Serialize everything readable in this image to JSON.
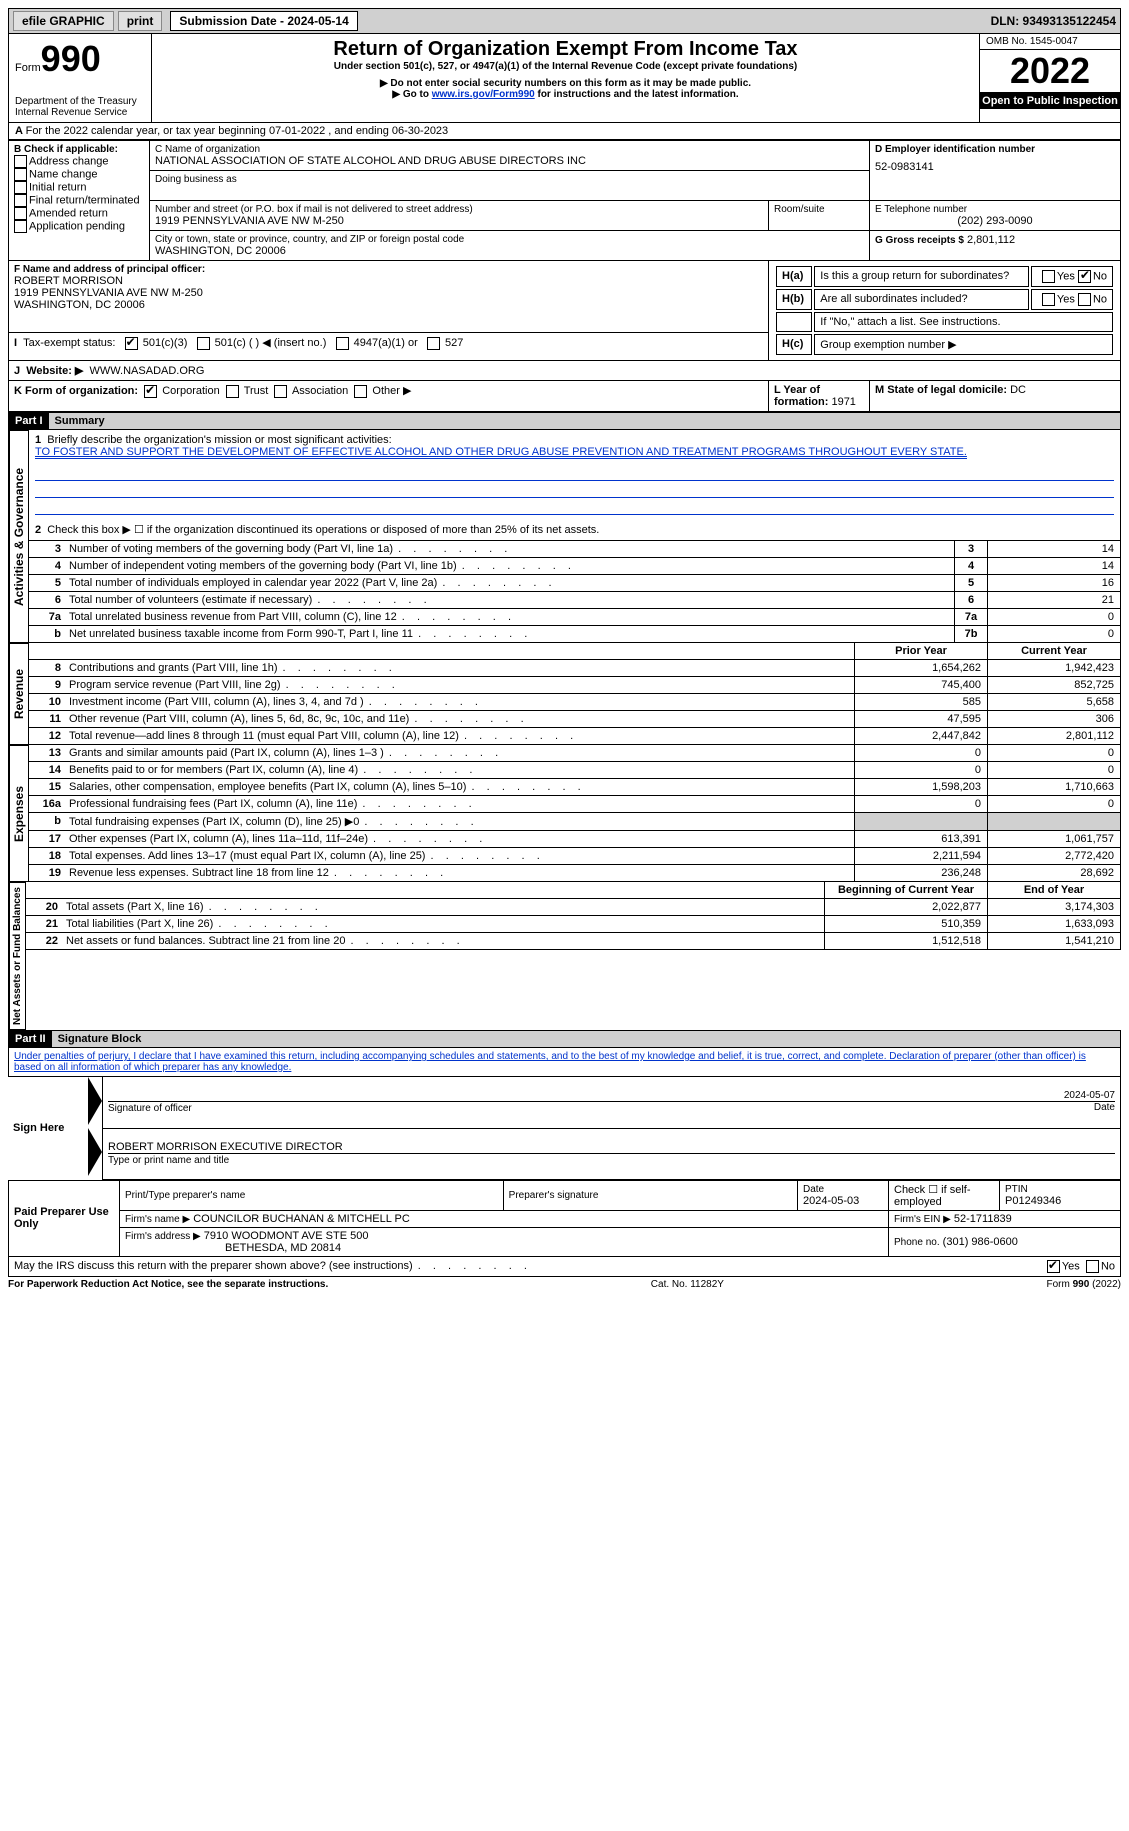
{
  "topbar": {
    "efile": "efile GRAPHIC",
    "print": "print",
    "subdate_label": "Submission Date - 2024-05-14",
    "dln_label": "DLN: 93493135122454"
  },
  "header": {
    "form_label": "Form",
    "form_num": "990",
    "dept": "Department of the Treasury",
    "irs": "Internal Revenue Service",
    "title": "Return of Organization Exempt From Income Tax",
    "subtitle": "Under section 501(c), 527, or 4947(a)(1) of the Internal Revenue Code (except private foundations)",
    "note1": "▶ Do not enter social security numbers on this form as it may be made public.",
    "note2_pre": "▶ Go to ",
    "note2_link": "www.irs.gov/Form990",
    "note2_post": " for instructions and the latest information.",
    "omb": "OMB No. 1545-0047",
    "year": "2022",
    "inspection": "Open to Public Inspection"
  },
  "periodA": "For the 2022 calendar year, or tax year beginning 07-01-2022    , and ending 06-30-2023",
  "sectionB": {
    "label": "B Check if applicable:",
    "opts": [
      "Address change",
      "Name change",
      "Initial return",
      "Final return/terminated",
      "Amended return",
      "Application pending"
    ]
  },
  "sectionC": {
    "name_label": "C Name of organization",
    "name": "NATIONAL ASSOCIATION OF STATE ALCOHOL AND DRUG ABUSE DIRECTORS INC",
    "dba_label": "Doing business as",
    "addr_label": "Number and street (or P.O. box if mail is not delivered to street address)",
    "room_label": "Room/suite",
    "addr": "1919 PENNSYLVANIA AVE NW M-250",
    "city_label": "City or town, state or province, country, and ZIP or foreign postal code",
    "city": "WASHINGTON, DC  20006"
  },
  "sectionD": {
    "label": "D Employer identification number",
    "val": "52-0983141"
  },
  "sectionE": {
    "label": "E Telephone number",
    "val": "(202) 293-0090"
  },
  "sectionG": {
    "label": "G Gross receipts $",
    "val": "2,801,112"
  },
  "sectionF": {
    "label": "F Name and address of principal officer:",
    "name": "ROBERT MORRISON",
    "addr": "1919 PENNSYLVANIA AVE NW M-250",
    "city": "WASHINGTON, DC  20006"
  },
  "sectionH": {
    "ha": "Is this a group return for subordinates?",
    "hb": "Are all subordinates included?",
    "hnote": "If \"No,\" attach a list. See instructions.",
    "hc": "Group exemption number ▶",
    "yes": "Yes",
    "no": "No"
  },
  "sectionI": {
    "label": "Tax-exempt status:",
    "o1": "501(c)(3)",
    "o2": "501(c) (   ) ◀ (insert no.)",
    "o3": "4947(a)(1) or",
    "o4": "527"
  },
  "sectionJ": {
    "label": "Website: ▶",
    "val": "WWW.NASADAD.ORG"
  },
  "sectionK": {
    "label": "K Form of organization:",
    "o1": "Corporation",
    "o2": "Trust",
    "o3": "Association",
    "o4": "Other ▶"
  },
  "sectionL": {
    "label": "L Year of formation:",
    "val": "1971"
  },
  "sectionM": {
    "label": "M State of legal domicile:",
    "val": "DC"
  },
  "part1": {
    "label": "Part I",
    "title": "Summary",
    "side_ag": "Activities & Governance",
    "side_rev": "Revenue",
    "side_exp": "Expenses",
    "side_net": "Net Assets or Fund Balances",
    "q1": "Briefly describe the organization's mission or most significant activities:",
    "mission": "TO FOSTER AND SUPPORT THE DEVELOPMENT OF EFFECTIVE ALCOHOL AND OTHER DRUG ABUSE PREVENTION AND TREATMENT PROGRAMS THROUGHOUT EVERY STATE.",
    "q2": "Check this box ▶ ☐  if the organization discontinued its operations or disposed of more than 25% of its net assets.",
    "rows_ag": [
      {
        "n": "3",
        "t": "Number of voting members of the governing body (Part VI, line 1a)",
        "b": "3",
        "v": "14"
      },
      {
        "n": "4",
        "t": "Number of independent voting members of the governing body (Part VI, line 1b)",
        "b": "4",
        "v": "14"
      },
      {
        "n": "5",
        "t": "Total number of individuals employed in calendar year 2022 (Part V, line 2a)",
        "b": "5",
        "v": "16"
      },
      {
        "n": "6",
        "t": "Total number of volunteers (estimate if necessary)",
        "b": "6",
        "v": "21"
      },
      {
        "n": "7a",
        "t": "Total unrelated business revenue from Part VIII, column (C), line 12",
        "b": "7a",
        "v": "0"
      },
      {
        "n": "b",
        "t": "Net unrelated business taxable income from Form 990-T, Part I, line 11",
        "b": "7b",
        "v": "0"
      }
    ],
    "hdr_prior": "Prior Year",
    "hdr_curr": "Current Year",
    "rows_rev": [
      {
        "n": "8",
        "t": "Contributions and grants (Part VIII, line 1h)",
        "p": "1,654,262",
        "c": "1,942,423"
      },
      {
        "n": "9",
        "t": "Program service revenue (Part VIII, line 2g)",
        "p": "745,400",
        "c": "852,725"
      },
      {
        "n": "10",
        "t": "Investment income (Part VIII, column (A), lines 3, 4, and 7d )",
        "p": "585",
        "c": "5,658"
      },
      {
        "n": "11",
        "t": "Other revenue (Part VIII, column (A), lines 5, 6d, 8c, 9c, 10c, and 11e)",
        "p": "47,595",
        "c": "306"
      },
      {
        "n": "12",
        "t": "Total revenue—add lines 8 through 11 (must equal Part VIII, column (A), line 12)",
        "p": "2,447,842",
        "c": "2,801,112"
      }
    ],
    "rows_exp": [
      {
        "n": "13",
        "t": "Grants and similar amounts paid (Part IX, column (A), lines 1–3 )",
        "p": "0",
        "c": "0"
      },
      {
        "n": "14",
        "t": "Benefits paid to or for members (Part IX, column (A), line 4)",
        "p": "0",
        "c": "0"
      },
      {
        "n": "15",
        "t": "Salaries, other compensation, employee benefits (Part IX, column (A), lines 5–10)",
        "p": "1,598,203",
        "c": "1,710,663"
      },
      {
        "n": "16a",
        "t": "Professional fundraising fees (Part IX, column (A), line 11e)",
        "p": "0",
        "c": "0"
      },
      {
        "n": "b",
        "t": "Total fundraising expenses (Part IX, column (D), line 25) ▶0",
        "p": "",
        "c": "",
        "grey": true
      },
      {
        "n": "17",
        "t": "Other expenses (Part IX, column (A), lines 11a–11d, 11f–24e)",
        "p": "613,391",
        "c": "1,061,757"
      },
      {
        "n": "18",
        "t": "Total expenses. Add lines 13–17 (must equal Part IX, column (A), line 25)",
        "p": "2,211,594",
        "c": "2,772,420"
      },
      {
        "n": "19",
        "t": "Revenue less expenses. Subtract line 18 from line 12",
        "p": "236,248",
        "c": "28,692"
      }
    ],
    "hdr_begin": "Beginning of Current Year",
    "hdr_end": "End of Year",
    "rows_net": [
      {
        "n": "20",
        "t": "Total assets (Part X, line 16)",
        "p": "2,022,877",
        "c": "3,174,303"
      },
      {
        "n": "21",
        "t": "Total liabilities (Part X, line 26)",
        "p": "510,359",
        "c": "1,633,093"
      },
      {
        "n": "22",
        "t": "Net assets or fund balances. Subtract line 21 from line 20",
        "p": "1,512,518",
        "c": "1,541,210"
      }
    ]
  },
  "part2": {
    "label": "Part II",
    "title": "Signature Block",
    "decl": "Under penalties of perjury, I declare that I have examined this return, including accompanying schedules and statements, and to the best of my knowledge and belief, it is true, correct, and complete. Declaration of preparer (other than officer) is based on all information of which preparer has any knowledge.",
    "sign_here": "Sign Here",
    "sig_officer": "Signature of officer",
    "sig_date": "2024-05-07",
    "officer": "ROBERT MORRISON  EXECUTIVE DIRECTOR",
    "officer_label": "Type or print name and title",
    "paid": "Paid Preparer Use Only",
    "prep_name_label": "Print/Type preparer's name",
    "prep_sig_label": "Preparer's signature",
    "prep_date_label": "Date",
    "prep_date": "2024-05-03",
    "check_self": "Check ☐ if self-employed",
    "ptin_label": "PTIN",
    "ptin": "P01249346",
    "firm_name_label": "Firm's name    ▶",
    "firm_name": "COUNCILOR BUCHANAN & MITCHELL PC",
    "firm_ein_label": "Firm's EIN ▶",
    "firm_ein": "52-1711839",
    "firm_addr_label": "Firm's address ▶",
    "firm_addr": "7910 WOODMONT AVE STE 500",
    "firm_city": "BETHESDA, MD  20814",
    "phone_label": "Phone no.",
    "phone": "(301) 986-0600",
    "discuss": "May the IRS discuss this return with the preparer shown above? (see instructions)",
    "yes": "Yes",
    "no": "No"
  },
  "footer": {
    "pra": "For Paperwork Reduction Act Notice, see the separate instructions.",
    "cat": "Cat. No. 11282Y",
    "formyr": "Form 990 (2022)"
  }
}
